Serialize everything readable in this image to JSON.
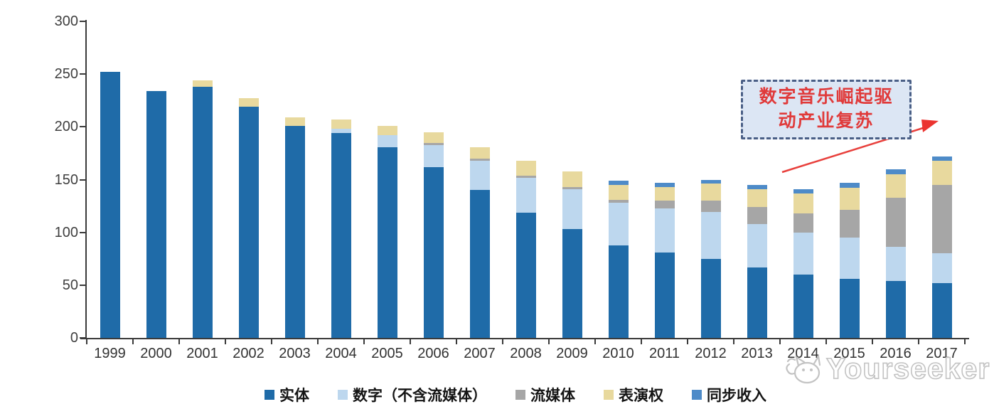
{
  "chart_data": {
    "type": "bar",
    "stacked": true,
    "title": "",
    "xlabel": "",
    "ylabel": "",
    "ylim": [
      0,
      300
    ],
    "yticks": [
      0,
      50,
      100,
      150,
      200,
      250,
      300
    ],
    "grid": false,
    "legend_position": "bottom",
    "categories": [
      "1999",
      "2000",
      "2001",
      "2002",
      "2003",
      "2004",
      "2005",
      "2006",
      "2007",
      "2008",
      "2009",
      "2010",
      "2011",
      "2012",
      "2013",
      "2014",
      "2015",
      "2016",
      "2017"
    ],
    "series": [
      {
        "name": "实体",
        "color": "#1f6ba8",
        "values": [
          252,
          234,
          238,
          219,
          201,
          194,
          181,
          162,
          140,
          119,
          103,
          88,
          81,
          75,
          67,
          60,
          56,
          54,
          52
        ]
      },
      {
        "name": "数字（不含流媒体）",
        "color": "#bdd7ee",
        "values": [
          0,
          0,
          0,
          0,
          0,
          4,
          11,
          21,
          28,
          33,
          38,
          40,
          42,
          44,
          41,
          40,
          39,
          32,
          28
        ]
      },
      {
        "name": "流媒体",
        "color": "#a6a6a6",
        "values": [
          0,
          0,
          0,
          0,
          0,
          0,
          0,
          2,
          2,
          2,
          2,
          3,
          7,
          11,
          16,
          18,
          26,
          47,
          65
        ]
      },
      {
        "name": "表演权",
        "color": "#e8d99e",
        "values": [
          0,
          0,
          6,
          8,
          8,
          9,
          9,
          10,
          11,
          14,
          15,
          14,
          13,
          16,
          17,
          19,
          21,
          22,
          23
        ]
      },
      {
        "name": "同步收入",
        "color": "#4e8bc8",
        "values": [
          0,
          0,
          0,
          0,
          0,
          0,
          0,
          0,
          0,
          0,
          0,
          4,
          4,
          4,
          4,
          4,
          5,
          5,
          4
        ]
      }
    ]
  },
  "annotation": {
    "line1": "数字音乐崛起驱",
    "line2": "动产业复苏",
    "text_color": "#e03a3a",
    "box_fill": "#dce6f4",
    "box_border": "#4a5f86",
    "arrow_color": "#e8403c"
  },
  "watermark": {
    "text": "Yourseeker",
    "color": "#c3c3c3"
  },
  "axis": {
    "line_color": "#3a3a3a",
    "label_color": "#3f3f3f"
  }
}
